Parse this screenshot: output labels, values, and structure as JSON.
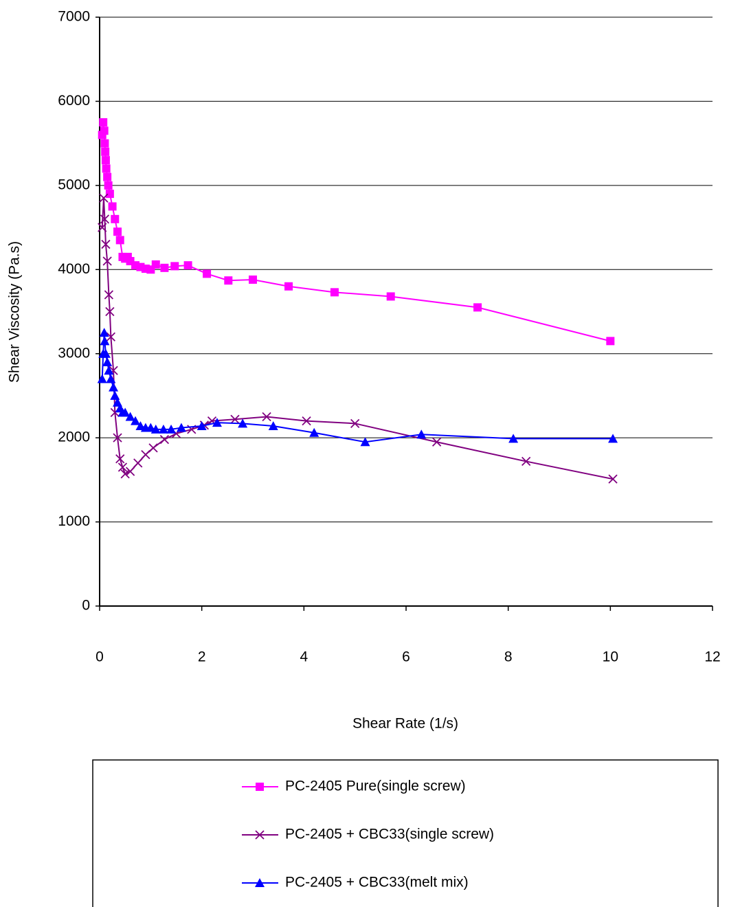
{
  "chart_data": {
    "type": "line",
    "xlabel": "Shear Rate (1/s)",
    "ylabel": "Shear Viscosity (Pa.s)",
    "xlim": [
      0,
      12
    ],
    "xticks": [
      0,
      2,
      4,
      6,
      8,
      10,
      12
    ],
    "ylim": [
      0,
      7000
    ],
    "yticks": [
      0,
      1000,
      2000,
      3000,
      4000,
      5000,
      6000,
      7000
    ],
    "grid": true,
    "legend": "bottom",
    "series": [
      {
        "name": "PC-2405 Pure(single screw)",
        "color": "#ff00ff",
        "marker": "square",
        "x": [
          0.05,
          0.07,
          0.09,
          0.1,
          0.11,
          0.12,
          0.13,
          0.15,
          0.17,
          0.2,
          0.25,
          0.3,
          0.35,
          0.4,
          0.45,
          0.5,
          0.55,
          0.6,
          0.7,
          0.8,
          0.9,
          1.0,
          1.1,
          1.27,
          1.47,
          1.73,
          2.1,
          2.52,
          3.0,
          3.7,
          4.6,
          5.7,
          7.4,
          10.0
        ],
        "values": [
          5600,
          5750,
          5650,
          5500,
          5400,
          5300,
          5200,
          5100,
          5000,
          4900,
          4750,
          4600,
          4450,
          4350,
          4150,
          4130,
          4150,
          4100,
          4050,
          4030,
          4010,
          4000,
          4060,
          4020,
          4040,
          4050,
          3950,
          3870,
          3880,
          3800,
          3730,
          3680,
          3550,
          3150
        ]
      },
      {
        "name": "PC-2405 + CBC33(single screw)",
        "color": "#800080",
        "marker": "x",
        "x": [
          0.05,
          0.08,
          0.1,
          0.12,
          0.15,
          0.18,
          0.2,
          0.22,
          0.27,
          0.3,
          0.35,
          0.4,
          0.45,
          0.5,
          0.6,
          0.75,
          0.9,
          1.05,
          1.27,
          1.5,
          1.8,
          2.05,
          2.2,
          2.65,
          3.27,
          4.05,
          5.0,
          6.6,
          8.35,
          10.05
        ],
        "values": [
          4500,
          4850,
          4600,
          4300,
          4100,
          3700,
          3500,
          3200,
          2800,
          2300,
          2000,
          1750,
          1650,
          1570,
          1600,
          1700,
          1800,
          1880,
          1980,
          2050,
          2100,
          2150,
          2200,
          2220,
          2250,
          2200,
          2170,
          1950,
          1720,
          1510
        ]
      },
      {
        "name": "PC-2405 + CBC33(melt mix)",
        "color": "#0000ff",
        "marker": "triangle",
        "x": [
          0.05,
          0.07,
          0.09,
          0.1,
          0.12,
          0.15,
          0.18,
          0.22,
          0.27,
          0.3,
          0.35,
          0.4,
          0.45,
          0.5,
          0.6,
          0.7,
          0.8,
          0.9,
          1.0,
          1.1,
          1.25,
          1.4,
          1.6,
          2.0,
          2.3,
          2.8,
          3.4,
          4.2,
          5.2,
          6.3,
          8.1,
          10.05
        ],
        "values": [
          2700,
          3000,
          3250,
          3150,
          3000,
          2900,
          2800,
          2700,
          2600,
          2500,
          2420,
          2350,
          2300,
          2300,
          2250,
          2200,
          2140,
          2120,
          2120,
          2100,
          2100,
          2100,
          2120,
          2140,
          2180,
          2170,
          2140,
          2060,
          1950,
          2040,
          1990,
          1990
        ]
      }
    ]
  }
}
